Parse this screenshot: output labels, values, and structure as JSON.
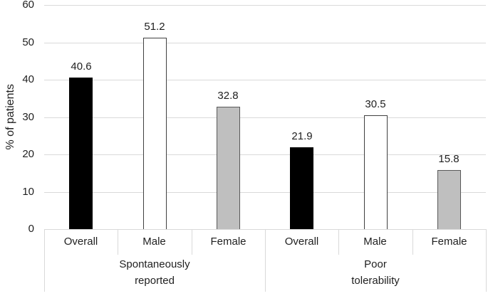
{
  "chart_data": {
    "type": "bar",
    "title": "",
    "xlabel": "",
    "ylabel": "% of patients",
    "ylim": [
      0,
      60
    ],
    "yticks": [
      0,
      10,
      20,
      30,
      40,
      50,
      60
    ],
    "grid": true,
    "legend": "none",
    "groups": [
      {
        "label_lines": [
          "Spontaneously",
          "reported"
        ],
        "categories": [
          "Overall",
          "Male",
          "Female"
        ],
        "values": [
          40.6,
          51.2,
          32.8
        ]
      },
      {
        "label_lines": [
          "Poor",
          "tolerability"
        ],
        "categories": [
          "Overall",
          "Male",
          "Female"
        ],
        "values": [
          21.9,
          30.5,
          15.8
        ]
      }
    ],
    "bar_styles": [
      {
        "name": "Overall",
        "fill": "#000000",
        "border": "#000000"
      },
      {
        "name": "Male",
        "fill": "#ffffff",
        "border": "#404040"
      },
      {
        "name": "Female",
        "fill": "#bfbfbf",
        "border": "#595959"
      }
    ],
    "value_labels": [
      "40.6",
      "51.2",
      "32.8",
      "21.9",
      "30.5",
      "15.8"
    ],
    "colors": {
      "gridline": "#d9d9d9",
      "axis_box": "#d9d9d9",
      "text": "#1f1f1f",
      "background": "#ffffff"
    }
  }
}
